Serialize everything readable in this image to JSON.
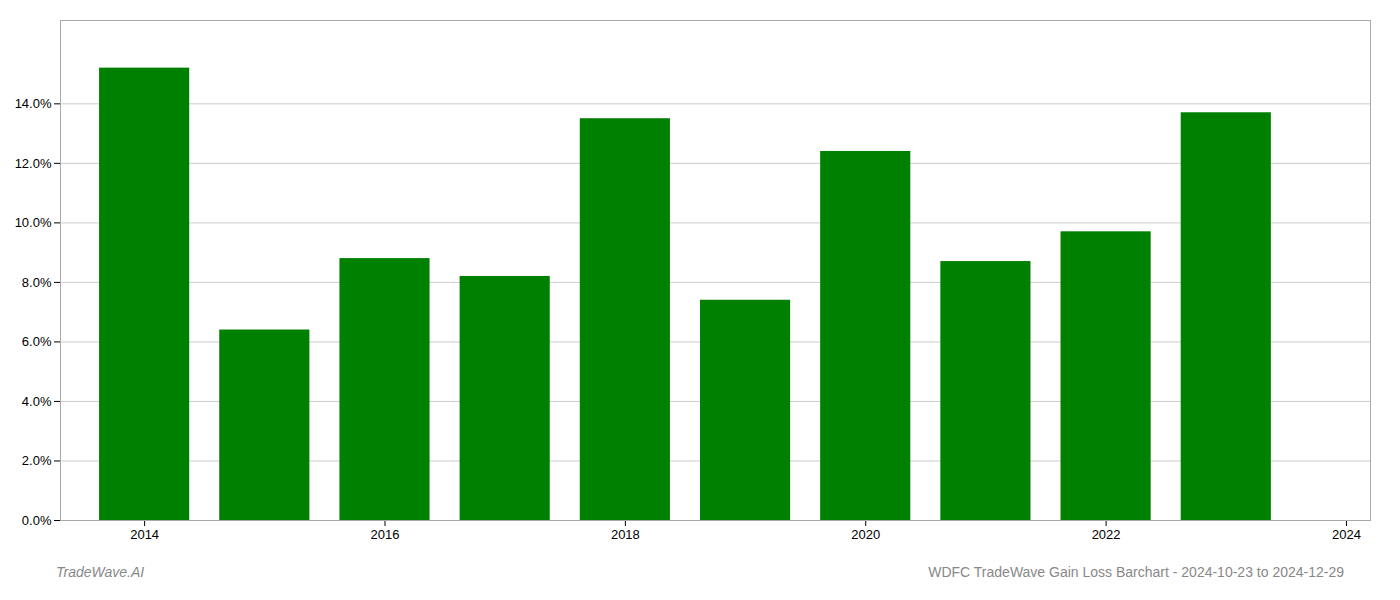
{
  "chart_data": {
    "type": "bar",
    "x": [
      2014,
      2015,
      2016,
      2017,
      2018,
      2019,
      2020,
      2021,
      2022,
      2023
    ],
    "values": [
      0.152,
      0.064,
      0.088,
      0.082,
      0.135,
      0.074,
      0.124,
      0.087,
      0.097,
      0.137
    ],
    "color": "#008000",
    "xlim": [
      2013.3,
      2024.2
    ],
    "xticks": [
      2014,
      2016,
      2018,
      2020,
      2022,
      2024
    ],
    "ylim": [
      0.0,
      0.168
    ],
    "yticks": [
      {
        "value": 0.0,
        "label": "0.0%"
      },
      {
        "value": 0.02,
        "label": "2.0%"
      },
      {
        "value": 0.04,
        "label": "4.0%"
      },
      {
        "value": 0.06,
        "label": "6.0%"
      },
      {
        "value": 0.08,
        "label": "8.0%"
      },
      {
        "value": 0.1,
        "label": "10.0%"
      },
      {
        "value": 0.12,
        "label": "12.0%"
      },
      {
        "value": 0.14,
        "label": "14.0%"
      }
    ],
    "grid": true,
    "annotations": [
      "TradeWave.AI",
      "WDFC TradeWave Gain Loss Barchart - 2024-10-23 to 2024-12-29"
    ]
  }
}
